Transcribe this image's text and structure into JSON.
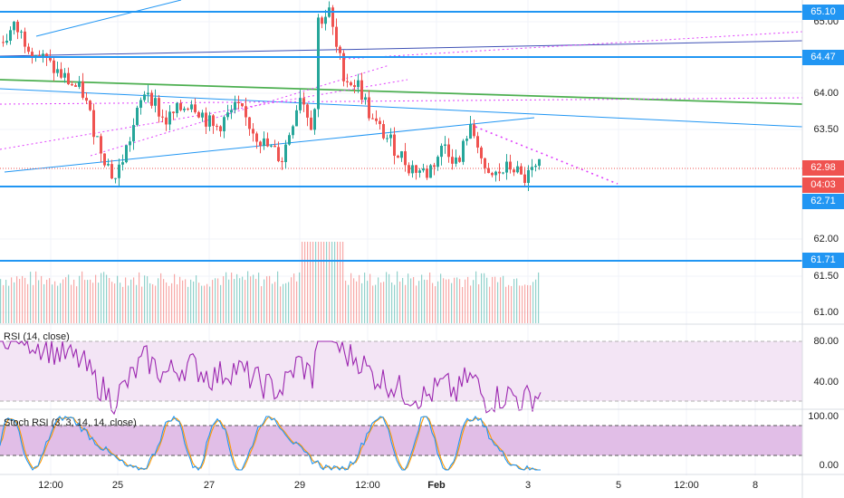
{
  "axis": {
    "price_labels": [
      "65.00",
      "64.00",
      "63.50",
      "62.00",
      "61.50",
      "61.00"
    ],
    "time_labels": [
      "12:00",
      "25",
      "27",
      "29",
      "12:00",
      "Feb",
      "3",
      "5",
      "12:00",
      "8"
    ]
  },
  "price_tags": [
    {
      "text": "65.10",
      "kind": "level"
    },
    {
      "text": "64.47",
      "kind": "level"
    },
    {
      "text": "62.98",
      "kind": "last"
    },
    {
      "text": "04:03",
      "kind": "timer"
    },
    {
      "text": "62.71",
      "kind": "level"
    },
    {
      "text": "61.71",
      "kind": "level"
    }
  ],
  "rsi": {
    "title": "RSI (14, close)",
    "levels": [
      "80.00",
      "40.00"
    ]
  },
  "stoch": {
    "title": "Stoch RSI (3, 3, 14, 14, close)",
    "levels": [
      "100.00",
      "0.00"
    ]
  },
  "colors": {
    "level_line": "#2196f3",
    "green_line": "#4caf50",
    "magenta": "#e040fb",
    "up": "#26a69a",
    "down": "#ef5350",
    "rsi_line": "#9c27b0",
    "rsi_band": "#f3e5f5",
    "stoch_k": "#2196f3",
    "stoch_d": "#ff9800",
    "stoch_band": "#e1bee7"
  }
}
